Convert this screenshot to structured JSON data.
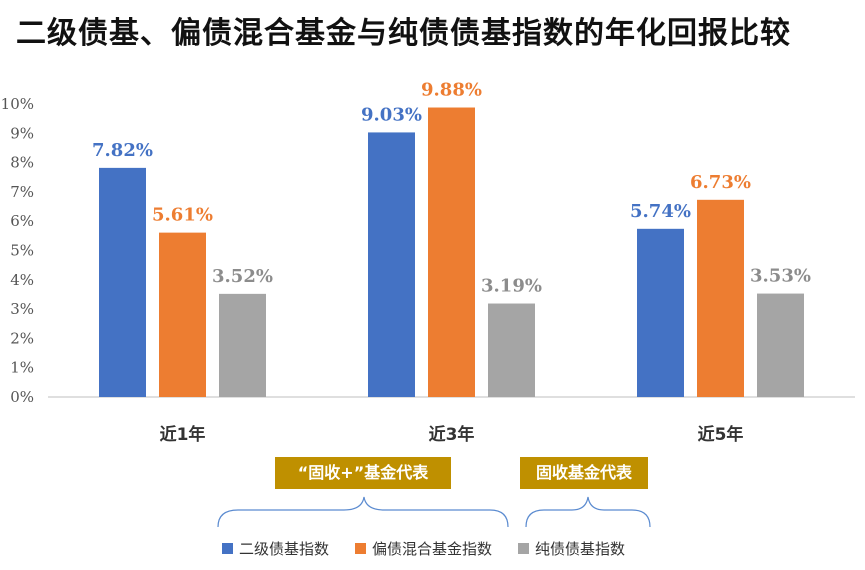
{
  "title": "二级债基、偏债混合基金与纯债债基指数的年化回报比较",
  "chart_data": {
    "type": "bar",
    "title": "二级债基、偏债混合基金与纯债债基指数的年化回报比较",
    "categories": [
      "近1年",
      "近3年",
      "近5年"
    ],
    "series": [
      {
        "name": "二级债基指数",
        "color": "#4472c4",
        "values": [
          7.82,
          9.03,
          5.74
        ],
        "labels": [
          "7.82%",
          "9.03%",
          "5.74%"
        ]
      },
      {
        "name": "偏债混合基金指数",
        "color": "#ed7d31",
        "values": [
          5.61,
          9.88,
          6.73
        ],
        "labels": [
          "5.61%",
          "9.88%",
          "6.73%"
        ]
      },
      {
        "name": "纯债债基指数",
        "color": "#a5a5a5",
        "values": [
          3.52,
          3.19,
          3.53
        ],
        "labels": [
          "3.52%",
          "3.19%",
          "3.53%"
        ]
      }
    ],
    "ylim": [
      0,
      10
    ],
    "yticks": [
      "0%",
      "1%",
      "2%",
      "3%",
      "4%",
      "5%",
      "6%",
      "7%",
      "8%",
      "9%",
      "10%"
    ],
    "grid": false,
    "legend": "bottom"
  },
  "annotations": {
    "group_1": "“固收+”基金代表",
    "group_2": "固收基金代表"
  }
}
